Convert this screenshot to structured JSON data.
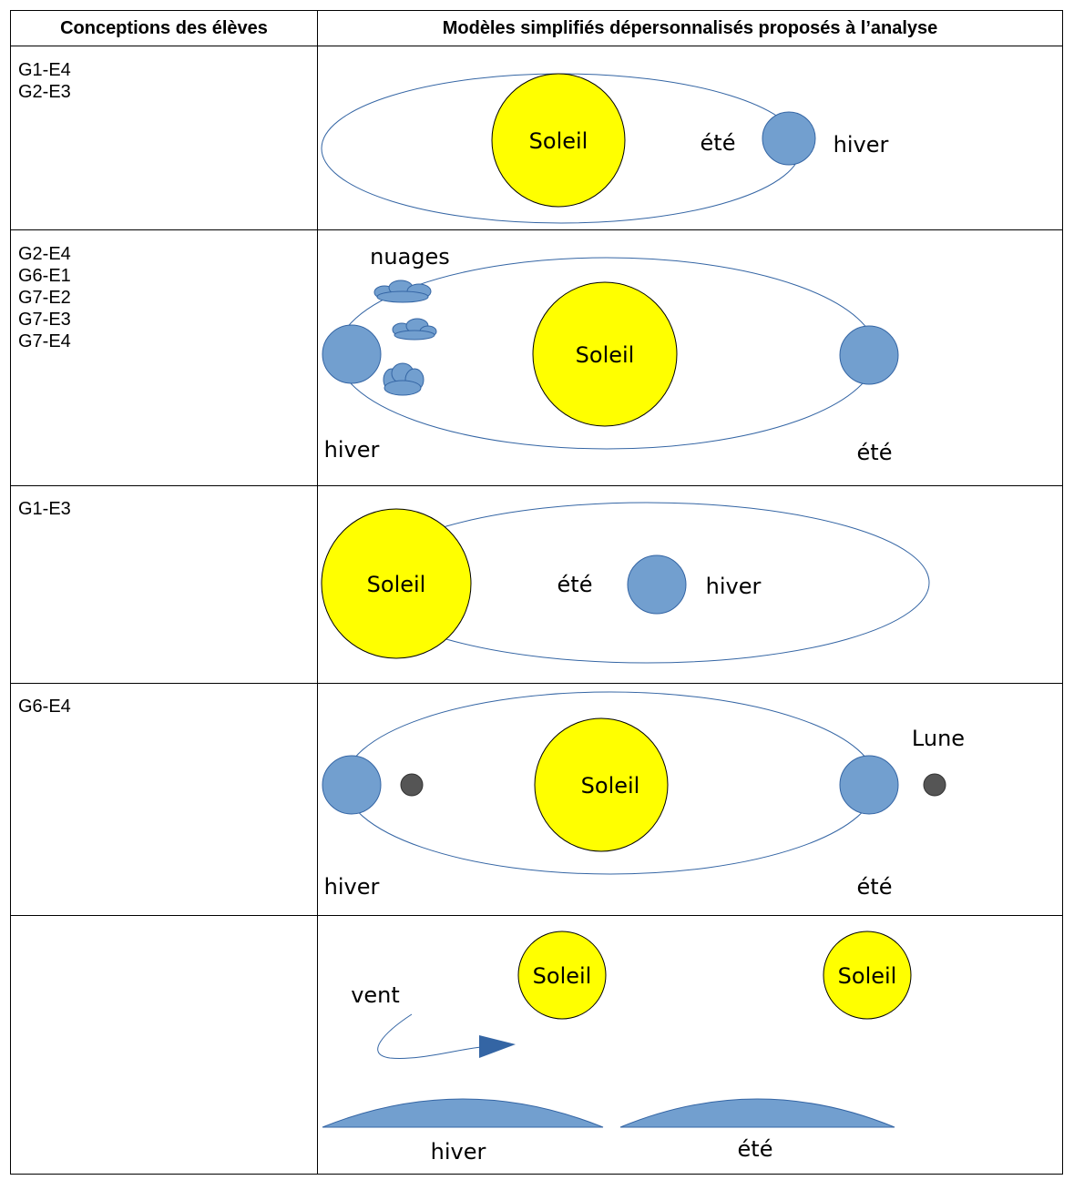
{
  "headers": {
    "col1": "Conceptions des élèves",
    "col2": "Modèles simplifiés dépersonnalisés proposés à l’analyse"
  },
  "rows": [
    {
      "ids": [
        "G1-E4",
        "G2-E3"
      ],
      "labels": {
        "sun": "Soleil",
        "ete": "été",
        "hiver": "hiver"
      }
    },
    {
      "ids": [
        "G2-E4",
        "G6-E1",
        "G7-E2",
        "G7-E3",
        "G7-E4"
      ],
      "labels": {
        "nuages": "nuages",
        "sun": "Soleil",
        "hiver": "hiver",
        "ete": "été"
      }
    },
    {
      "ids": [
        "G1-E3"
      ],
      "labels": {
        "sun": "Soleil",
        "ete": "été",
        "hiver": "hiver"
      }
    },
    {
      "ids": [
        "G6-E4"
      ],
      "labels": {
        "lune": "Lune",
        "sun": "Soleil",
        "hiver": "hiver",
        "ete": "été"
      }
    },
    {
      "ids": [],
      "labels": {
        "vent": "vent",
        "sun1": "Soleil",
        "sun2": "Soleil",
        "hiver": "hiver",
        "ete": "été"
      }
    }
  ],
  "colors": {
    "sun": "#ffff00",
    "earth": "#729fcf",
    "orbit": "#3465a4",
    "moon": "#555555"
  }
}
